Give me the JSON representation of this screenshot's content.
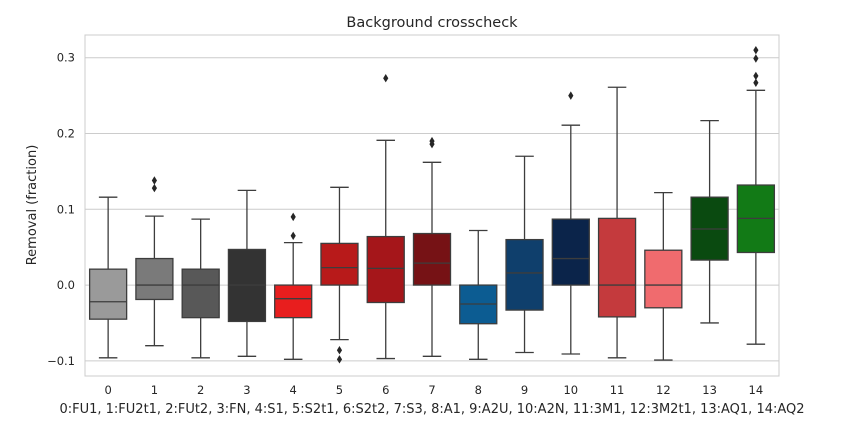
{
  "chart_data": {
    "type": "box",
    "title": "Background crosscheck",
    "ylabel": "Removal (fraction)",
    "xlabel": "0:FU1, 1:FU2t1, 2:FUt2, 3:FN, 4:S1, 5:S2t1, 6:S2t2, 7:S3,  8:A1, 9:A2U, 10:A2N, 11:3M1, 12:3M2t1, 13:AQ1, 14:AQ2",
    "ylim": [
      -0.12,
      0.33
    ],
    "yticks": [
      -0.1,
      0.0,
      0.1,
      0.2,
      0.3
    ],
    "ytick_labels": [
      "−0.1",
      "0.0",
      "0.1",
      "0.2",
      "0.3"
    ],
    "grid": true,
    "categories": [
      "0",
      "1",
      "2",
      "3",
      "4",
      "5",
      "6",
      "7",
      "8",
      "9",
      "10",
      "11",
      "12",
      "13",
      "14"
    ],
    "boxes": [
      {
        "category": "0",
        "whisker_low": -0.096,
        "q1": -0.045,
        "median": -0.022,
        "q3": 0.021,
        "whisker_high": 0.116,
        "outliers": [],
        "color": "#9a9a9a"
      },
      {
        "category": "1",
        "whisker_low": -0.08,
        "q1": -0.019,
        "median": 0.0,
        "q3": 0.035,
        "whisker_high": 0.091,
        "outliers": [
          0.128,
          0.138
        ],
        "color": "#7a7a7a"
      },
      {
        "category": "2",
        "whisker_low": -0.096,
        "q1": -0.043,
        "median": 0.0,
        "q3": 0.021,
        "whisker_high": 0.087,
        "outliers": [],
        "color": "#585858"
      },
      {
        "category": "3",
        "whisker_low": -0.094,
        "q1": -0.048,
        "median": 0.0,
        "q3": 0.047,
        "whisker_high": 0.125,
        "outliers": [],
        "color": "#333333"
      },
      {
        "category": "4",
        "whisker_low": -0.098,
        "q1": -0.043,
        "median": -0.018,
        "q3": 0.0,
        "whisker_high": 0.056,
        "outliers": [
          0.065,
          0.09
        ],
        "color": "#e81e1e"
      },
      {
        "category": "5",
        "whisker_low": -0.072,
        "q1": 0.0,
        "median": 0.023,
        "q3": 0.055,
        "whisker_high": 0.129,
        "outliers": [
          -0.086,
          -0.098
        ],
        "color": "#b81a1a"
      },
      {
        "category": "6",
        "whisker_low": -0.097,
        "q1": -0.023,
        "median": 0.022,
        "q3": 0.064,
        "whisker_high": 0.191,
        "outliers": [
          0.273
        ],
        "color": "#a5161a"
      },
      {
        "category": "7",
        "whisker_low": -0.094,
        "q1": 0.0,
        "median": 0.029,
        "q3": 0.068,
        "whisker_high": 0.162,
        "outliers": [
          0.186,
          0.19
        ],
        "color": "#761215"
      },
      {
        "category": "8",
        "whisker_low": -0.098,
        "q1": -0.051,
        "median": -0.025,
        "q3": 0.0,
        "whisker_high": 0.072,
        "outliers": [],
        "color": "#0c5c92"
      },
      {
        "category": "9",
        "whisker_low": -0.089,
        "q1": -0.033,
        "median": 0.016,
        "q3": 0.06,
        "whisker_high": 0.17,
        "outliers": [],
        "color": "#0f3f6c"
      },
      {
        "category": "10",
        "whisker_low": -0.091,
        "q1": 0.0,
        "median": 0.035,
        "q3": 0.087,
        "whisker_high": 0.211,
        "outliers": [
          0.25
        ],
        "color": "#0b244a"
      },
      {
        "category": "11",
        "whisker_low": -0.096,
        "q1": -0.042,
        "median": 0.0,
        "q3": 0.088,
        "whisker_high": 0.261,
        "outliers": [],
        "color": "#c43a3d"
      },
      {
        "category": "12",
        "whisker_low": -0.099,
        "q1": -0.03,
        "median": 0.0,
        "q3": 0.046,
        "whisker_high": 0.122,
        "outliers": [],
        "color": "#f06b6e"
      },
      {
        "category": "13",
        "whisker_low": -0.05,
        "q1": 0.033,
        "median": 0.074,
        "q3": 0.116,
        "whisker_high": 0.217,
        "outliers": [],
        "color": "#0a4a10"
      },
      {
        "category": "14",
        "whisker_low": -0.078,
        "q1": 0.043,
        "median": 0.088,
        "q3": 0.132,
        "whisker_high": 0.257,
        "outliers": [
          0.267,
          0.276,
          0.299,
          0.31
        ],
        "color": "#127a16"
      }
    ]
  }
}
